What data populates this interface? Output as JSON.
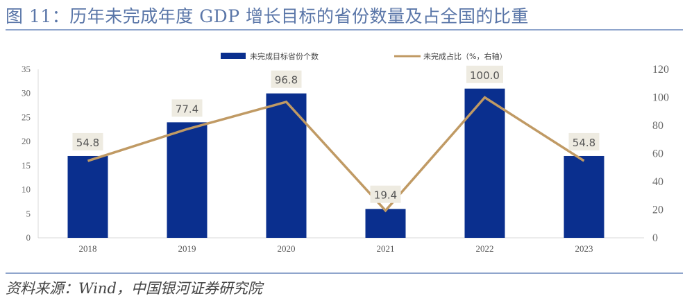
{
  "header": {
    "title": "图 11：历年未完成年度 GDP 增长目标的省份数量及占全国的比重"
  },
  "footer": {
    "source": "资料来源：Wind，中国银河证券研究院"
  },
  "chart_data": {
    "type": "bar",
    "title": "历年未完成年度 GDP 增长目标的省份数量及占全国的比重",
    "categories": [
      "2018",
      "2019",
      "2020",
      "2021",
      "2022",
      "2023"
    ],
    "series": [
      {
        "name": "未完成目标省份个数",
        "type": "bar",
        "axis": "left",
        "color": "#0a2f8e",
        "values": [
          17,
          24,
          30,
          6,
          31,
          17
        ]
      },
      {
        "name": "未完成占比（%，右轴）",
        "type": "line",
        "axis": "right",
        "color": "#c09a64",
        "values": [
          54.8,
          77.4,
          96.8,
          19.4,
          100.0,
          54.8
        ],
        "data_labels": [
          "54.8",
          "77.4",
          "96.8",
          "19.4",
          "100.0",
          "54.8"
        ]
      }
    ],
    "left_axis": {
      "min": 0,
      "max": 35,
      "ticks": [
        0,
        5,
        10,
        15,
        20,
        25,
        30,
        35
      ]
    },
    "right_axis": {
      "min": 0,
      "max": 120,
      "ticks": [
        0,
        20,
        40,
        60,
        80,
        100,
        120
      ]
    },
    "xlabel": "",
    "ylabel": "",
    "grid": false,
    "legend_position": "top-center",
    "data_label_bg": "#eeebe1"
  }
}
